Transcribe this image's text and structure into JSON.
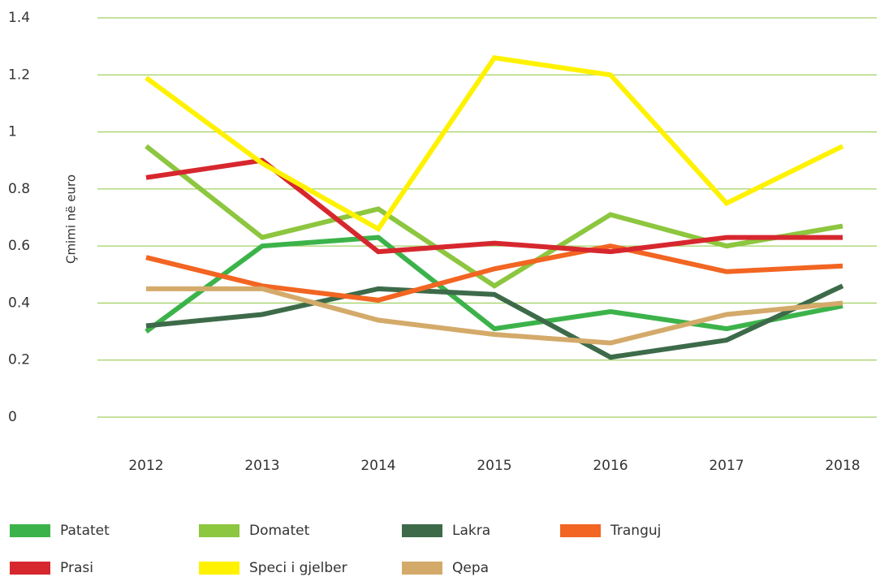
{
  "chart_data": {
    "type": "line",
    "y_label": "Çmimi në euro",
    "categories": [
      "2012",
      "2013",
      "2014",
      "2015",
      "2016",
      "2017",
      "2018"
    ],
    "series": [
      {
        "name": "Patatet",
        "color": "#3cb34a",
        "values": [
          0.3,
          0.6,
          0.63,
          0.31,
          0.37,
          0.31,
          0.39
        ]
      },
      {
        "name": "Domatet",
        "color": "#8dc63f",
        "values": [
          0.95,
          0.63,
          0.73,
          0.46,
          0.71,
          0.6,
          0.67
        ]
      },
      {
        "name": "Lakra",
        "color": "#3d6b4a",
        "values": [
          0.32,
          0.36,
          0.45,
          0.43,
          0.21,
          0.27,
          0.46
        ]
      },
      {
        "name": "Tranguj",
        "color": "#f26522",
        "values": [
          0.56,
          0.46,
          0.41,
          0.52,
          0.6,
          0.51,
          0.53
        ]
      },
      {
        "name": "Prasi",
        "color": "#d7272e",
        "values": [
          0.84,
          0.9,
          0.58,
          0.61,
          0.58,
          0.63,
          0.63
        ]
      },
      {
        "name": "Speci i gjelber",
        "color": "#fff200",
        "values": [
          1.19,
          0.89,
          0.66,
          1.26,
          1.2,
          0.75,
          0.95
        ]
      },
      {
        "name": "Qepa",
        "color": "#d4aa6a",
        "values": [
          0.45,
          0.45,
          0.34,
          0.29,
          0.26,
          0.36,
          0.4
        ]
      }
    ],
    "ylim": [
      0,
      1.4
    ],
    "yticks": [
      0,
      0.2,
      0.4,
      0.6,
      0.8,
      1,
      1.2,
      1.4
    ],
    "grid": true,
    "legend": "bottom"
  }
}
